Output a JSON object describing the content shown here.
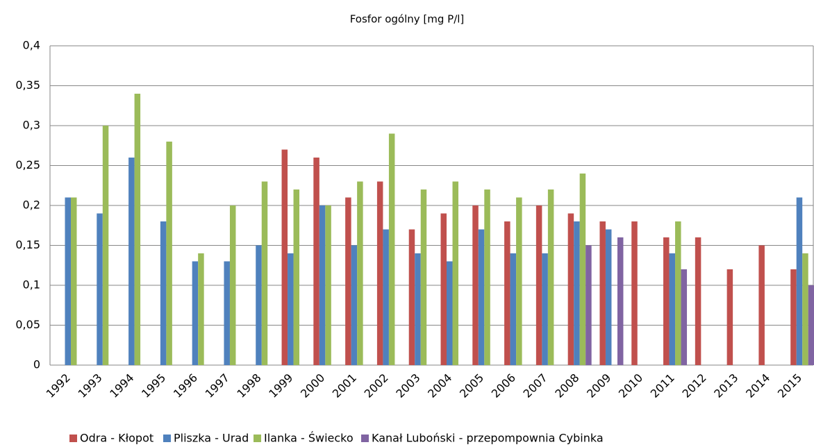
{
  "chart_data": {
    "type": "bar",
    "title": "Fosfor ogólny [mg P/l]",
    "categories": [
      "1992",
      "1993",
      "1994",
      "1995",
      "1996",
      "1997",
      "1998",
      "1999",
      "2000",
      "2001",
      "2002",
      "2003",
      "2004",
      "2005",
      "2006",
      "2007",
      "2008",
      "2009",
      "2010",
      "2011",
      "2012",
      "2013",
      "2014",
      "2015"
    ],
    "series": [
      {
        "name": "Odra - Kłopot",
        "color": "#c0504d",
        "values": [
          null,
          null,
          null,
          null,
          null,
          null,
          null,
          0.27,
          0.26,
          0.21,
          0.23,
          0.17,
          0.19,
          0.2,
          0.18,
          0.2,
          0.19,
          0.18,
          0.18,
          0.16,
          0.16,
          0.12,
          0.15,
          0.12
        ]
      },
      {
        "name": "Pliszka - Urad",
        "color": "#4f81bd",
        "values": [
          0.21,
          0.19,
          0.26,
          0.18,
          0.13,
          0.13,
          0.15,
          0.14,
          0.2,
          0.15,
          0.17,
          0.14,
          0.13,
          0.17,
          0.14,
          0.14,
          0.18,
          0.17,
          null,
          0.14,
          null,
          null,
          null,
          0.21
        ]
      },
      {
        "name": "Ilanka - Świecko",
        "color": "#9bbb59",
        "values": [
          0.21,
          0.3,
          0.34,
          0.28,
          0.14,
          0.2,
          0.23,
          0.22,
          0.2,
          0.23,
          0.29,
          0.22,
          0.23,
          0.22,
          0.21,
          0.22,
          0.24,
          null,
          null,
          0.18,
          null,
          null,
          null,
          0.14
        ]
      },
      {
        "name": "Kanał Luboński - przepompownia Cybinka",
        "color": "#8064a2",
        "values": [
          null,
          null,
          null,
          null,
          null,
          null,
          null,
          null,
          null,
          null,
          null,
          null,
          null,
          null,
          null,
          null,
          0.15,
          0.16,
          null,
          0.12,
          null,
          null,
          null,
          0.1
        ]
      }
    ],
    "ylim": [
      0,
      0.4
    ],
    "yticks": [
      0,
      {
        "value": 0.05,
        "label": "0,05"
      },
      {
        "value": 0.1,
        "label": "0,1"
      },
      {
        "value": 0.15,
        "label": "0,15"
      },
      {
        "value": 0.2,
        "label": "0,2"
      },
      {
        "value": 0.25,
        "label": "0,25"
      },
      {
        "value": 0.3,
        "label": "0,3"
      },
      {
        "value": 0.35,
        "label": "0,35"
      },
      {
        "value": 0.4,
        "label": "0,4"
      }
    ],
    "grid": true,
    "legend": "bottom"
  }
}
